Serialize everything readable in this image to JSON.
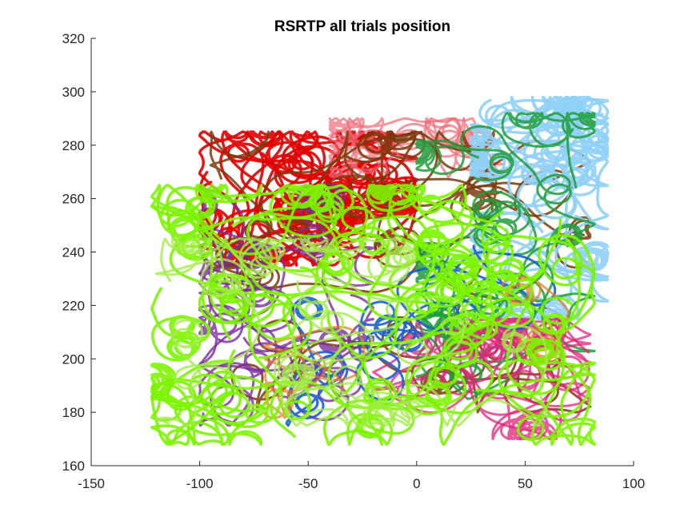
{
  "chart_data": {
    "type": "line",
    "title": "RSRTP all trials position",
    "xlabel": "",
    "ylabel": "",
    "xlim": [
      -150,
      100
    ],
    "ylim": [
      160,
      320
    ],
    "xticks": [
      -150,
      -100,
      -50,
      0,
      50,
      100
    ],
    "yticks": [
      160,
      180,
      200,
      220,
      240,
      260,
      280,
      300,
      320
    ],
    "xtick_labels": [
      "-150",
      "-100",
      "-50",
      "0",
      "50",
      "100"
    ],
    "ytick_labels": [
      "160",
      "180",
      "200",
      "220",
      "240",
      "260",
      "280",
      "300",
      "320"
    ],
    "grid": false,
    "legend": "none",
    "box": "left-bottom axes only",
    "series": [
      {
        "color": "#e00000",
        "opacity": 0.9,
        "width": 3.5,
        "region": {
          "x": [
            -100,
            0
          ],
          "y": [
            235,
            285
          ]
        },
        "count": 14
      },
      {
        "color": "#f06a78",
        "opacity": 0.7,
        "width": 3,
        "region": {
          "x": [
            -40,
            40
          ],
          "y": [
            268,
            290
          ]
        },
        "count": 4
      },
      {
        "color": "#7a3b0c",
        "opacity": 0.85,
        "width": 3,
        "region": {
          "x": [
            -95,
            80
          ],
          "y": [
            180,
            285
          ]
        },
        "count": 10
      },
      {
        "color": "#8fd0f6",
        "opacity": 0.9,
        "width": 3.5,
        "region": {
          "x": [
            25,
            88
          ],
          "y": [
            215,
            298
          ]
        },
        "count": 12
      },
      {
        "color": "#1f9e3a",
        "opacity": 0.85,
        "width": 3,
        "region": {
          "x": [
            0,
            82
          ],
          "y": [
            185,
            292
          ]
        },
        "count": 9
      },
      {
        "color": "#7b2d9e",
        "opacity": 0.8,
        "width": 3,
        "region": {
          "x": [
            -100,
            -20
          ],
          "y": [
            175,
            265
          ]
        },
        "count": 8
      },
      {
        "color": "#e0247a",
        "opacity": 0.75,
        "width": 3,
        "region": {
          "x": [
            -20,
            80
          ],
          "y": [
            170,
            215
          ]
        },
        "count": 8
      },
      {
        "color": "#1a5fd0",
        "opacity": 0.9,
        "width": 3,
        "region": {
          "x": [
            -60,
            75
          ],
          "y": [
            175,
            250
          ]
        },
        "count": 3
      },
      {
        "color": "#e07a20",
        "opacity": 0.7,
        "width": 3,
        "region": {
          "x": [
            -70,
            70
          ],
          "y": [
            178,
            240
          ]
        },
        "count": 2
      },
      {
        "color": "#7cf400",
        "opacity": 0.9,
        "width": 3.5,
        "region": {
          "x": [
            -122,
            82
          ],
          "y": [
            168,
            265
          ]
        },
        "count": 26
      },
      {
        "color": "#a4ec4a",
        "opacity": 0.8,
        "width": 3,
        "region": {
          "x": [
            -120,
            60
          ],
          "y": [
            175,
            245
          ]
        },
        "count": 8
      }
    ]
  }
}
